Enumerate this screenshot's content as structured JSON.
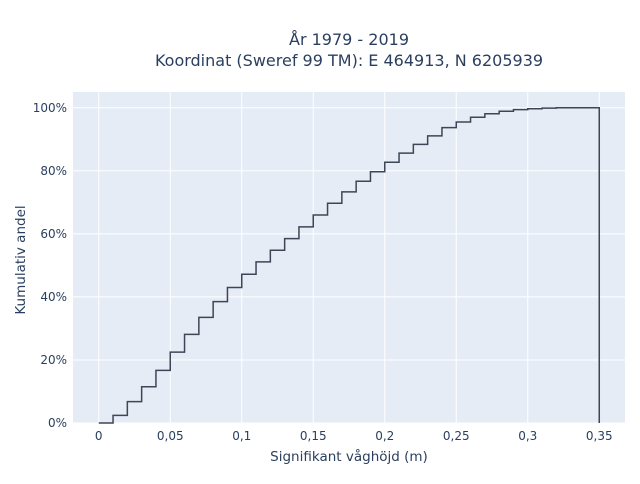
{
  "chart_data": {
    "type": "line",
    "title_line1": "År 1979 - 2019",
    "title_line2": "Koordinat (Sweref 99 TM): E 464913, N 6205939",
    "xlabel": "Signifikant våghöjd (m)",
    "ylabel": "Kumulativ andel",
    "xlim": [
      -0.018,
      0.368
    ],
    "ylim": [
      0,
      1.05
    ],
    "x_ticks": [
      {
        "value": 0,
        "label": "0"
      },
      {
        "value": 0.05,
        "label": "0,05"
      },
      {
        "value": 0.1,
        "label": "0,1"
      },
      {
        "value": 0.15,
        "label": "0,15"
      },
      {
        "value": 0.2,
        "label": "0,2"
      },
      {
        "value": 0.25,
        "label": "0,25"
      },
      {
        "value": 0.3,
        "label": "0,3"
      },
      {
        "value": 0.35,
        "label": "0,35"
      }
    ],
    "y_ticks": [
      {
        "value": 0,
        "label": "0%"
      },
      {
        "value": 0.2,
        "label": "20%"
      },
      {
        "value": 0.4,
        "label": "40%"
      },
      {
        "value": 0.6,
        "label": "60%"
      },
      {
        "value": 0.8,
        "label": "80%"
      },
      {
        "value": 1.0,
        "label": "100%"
      }
    ],
    "grid": true,
    "background_color": "#e5ecf6",
    "line_color": "#3d4656",
    "series": [
      {
        "step": "post",
        "x": [
          0,
          0.01,
          0.02,
          0.03,
          0.04,
          0.05,
          0.06,
          0.07,
          0.08,
          0.09,
          0.1,
          0.11,
          0.12,
          0.13,
          0.14,
          0.15,
          0.16,
          0.17,
          0.18,
          0.19,
          0.2,
          0.21,
          0.22,
          0.23,
          0.24,
          0.25,
          0.26,
          0.27,
          0.28,
          0.29,
          0.3,
          0.31,
          0.32,
          0.33,
          0.34,
          0.35,
          0.35
        ],
        "y": [
          0.0,
          0.024,
          0.068,
          0.115,
          0.167,
          0.225,
          0.281,
          0.335,
          0.385,
          0.43,
          0.472,
          0.511,
          0.548,
          0.585,
          0.622,
          0.66,
          0.697,
          0.733,
          0.767,
          0.797,
          0.827,
          0.856,
          0.884,
          0.911,
          0.937,
          0.955,
          0.97,
          0.981,
          0.989,
          0.994,
          0.997,
          0.999,
          1.0,
          1.0,
          1.0,
          1.0,
          0.0
        ]
      }
    ]
  }
}
